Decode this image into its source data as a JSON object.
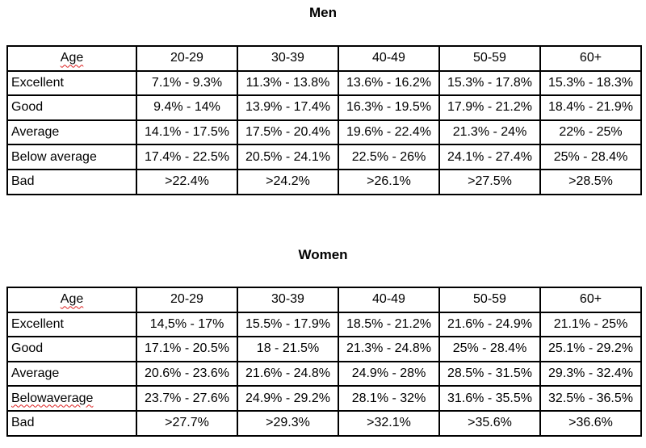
{
  "men": {
    "title": "Men",
    "header": {
      "age_label": "Age",
      "ranges": [
        "20-29",
        "30-39",
        "40-49",
        "50-59",
        "60+"
      ]
    },
    "rows": [
      {
        "label": "Excellent",
        "values": [
          "7.1% - 9.3%",
          "11.3% - 13.8%",
          "13.6% - 16.2%",
          "15.3% - 17.8%",
          "15.3% - 18.3%"
        ]
      },
      {
        "label": "Good",
        "values": [
          "9.4% - 14%",
          "13.9% - 17.4%",
          "16.3% - 19.5%",
          "17.9% - 21.2%",
          "18.4% - 21.9%"
        ]
      },
      {
        "label": "Average",
        "values": [
          "14.1% - 17.5%",
          "17.5% - 20.4%",
          "19.6% - 22.4%",
          "21.3% - 24%",
          "22% - 25%"
        ]
      },
      {
        "label": "Below average",
        "values": [
          "17.4% - 22.5%",
          "20.5% - 24.1%",
          "22.5% - 26%",
          "24.1% - 27.4%",
          "25% - 28.4%"
        ]
      },
      {
        "label": "Bad",
        "values": [
          ">22.4%",
          ">24.2%",
          ">26.1%",
          ">27.5%",
          ">28.5%"
        ]
      }
    ]
  },
  "women": {
    "title": "Women",
    "header": {
      "age_label": "Age",
      "ranges": [
        "20-29",
        "30-39",
        "40-49",
        "50-59",
        "60+"
      ]
    },
    "rows": [
      {
        "label": "Excellent",
        "values": [
          "14,5% - 17%",
          "15.5% - 17.9%",
          "18.5% - 21.2%",
          "21.6% - 24.9%",
          "21.1% - 25%"
        ]
      },
      {
        "label": "Good",
        "values": [
          "17.1% - 20.5%",
          "18 - 21.5%",
          "21.3% - 24.8%",
          "25% - 28.4%",
          "25.1% - 29.2%"
        ]
      },
      {
        "label": "Average",
        "values": [
          "20.6% - 23.6%",
          "21.6% - 24.8%",
          "24.9% - 28%",
          "28.5% - 31.5%",
          "29.3% - 32.4%"
        ]
      },
      {
        "label": "Belowaverage",
        "values": [
          "23.7% - 27.6%",
          "24.9% - 29.2%",
          "28.1% - 32%",
          "31.6% - 35.5%",
          "32.5% - 36.5%"
        ]
      },
      {
        "label": "Bad",
        "values": [
          ">27.7%",
          ">29.3%",
          ">32.1%",
          ">35.6%",
          ">36.6%"
        ]
      }
    ]
  }
}
